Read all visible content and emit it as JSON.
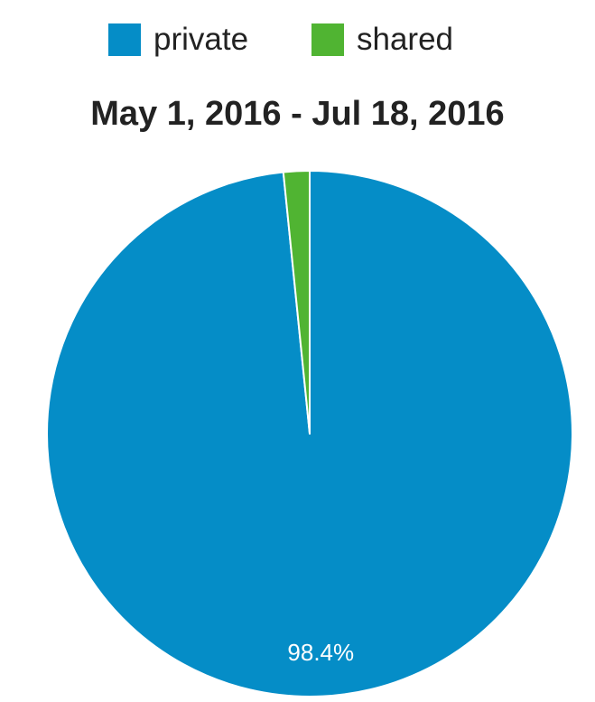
{
  "chart_data": {
    "type": "pie",
    "title": "May 1, 2016 - Jul 18, 2016",
    "legend_position": "top",
    "slices": [
      {
        "name": "private",
        "value": 98.4,
        "color": "#058dc7",
        "label": "98.4%"
      },
      {
        "name": "shared",
        "value": 1.6,
        "color": "#50b432",
        "label": ""
      }
    ]
  }
}
